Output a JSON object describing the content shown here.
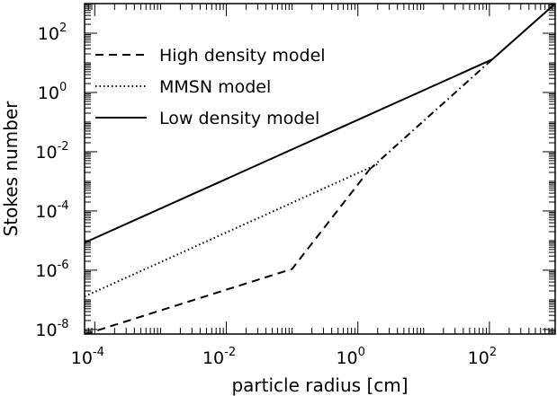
{
  "chart_data": {
    "type": "line",
    "title": "",
    "xlabel": "particle radius [cm]",
    "ylabel": "Stokes number",
    "x_scale": "log",
    "y_scale": "log",
    "xlim": [
      7e-05,
      1000
    ],
    "ylim": [
      7e-09,
      1000
    ],
    "grid": false,
    "legend_position": "top-left",
    "x_ticks": [
      {
        "base": "10",
        "exp": "-4",
        "value": 0.0001
      },
      {
        "base": "10",
        "exp": "-2",
        "value": 0.01
      },
      {
        "base": "10",
        "exp": "0",
        "value": 1
      },
      {
        "base": "10",
        "exp": "2",
        "value": 100
      }
    ],
    "y_ticks": [
      {
        "base": "10",
        "exp": "-8",
        "value": 1e-08
      },
      {
        "base": "10",
        "exp": "-6",
        "value": 1e-06
      },
      {
        "base": "10",
        "exp": "-4",
        "value": 0.0001
      },
      {
        "base": "10",
        "exp": "-2",
        "value": 0.01
      },
      {
        "base": "10",
        "exp": "0",
        "value": 1
      },
      {
        "base": "10",
        "exp": "2",
        "value": 100
      }
    ],
    "series": [
      {
        "name": "High density model",
        "style": "dashed",
        "color": "#000000",
        "x": [
          7e-05,
          0.1,
          1.5
        ],
        "y": [
          6.8e-09,
          1.1e-06,
          0.0025
        ]
      },
      {
        "name": "MMSN model",
        "style": "dotted",
        "color": "#000000",
        "x": [
          7e-05,
          2.1
        ],
        "y": [
          1.3e-07,
          0.004
        ]
      },
      {
        "name": "Low density model",
        "style": "solid",
        "color": "#000000",
        "x": [
          7e-05,
          110,
          1000
        ],
        "y": [
          8.5e-06,
          13,
          1000
        ]
      },
      {
        "name": "",
        "style": "dashdot",
        "color": "#000000",
        "x": [
          1.5,
          110
        ],
        "y": [
          0.0025,
          13
        ]
      }
    ]
  }
}
